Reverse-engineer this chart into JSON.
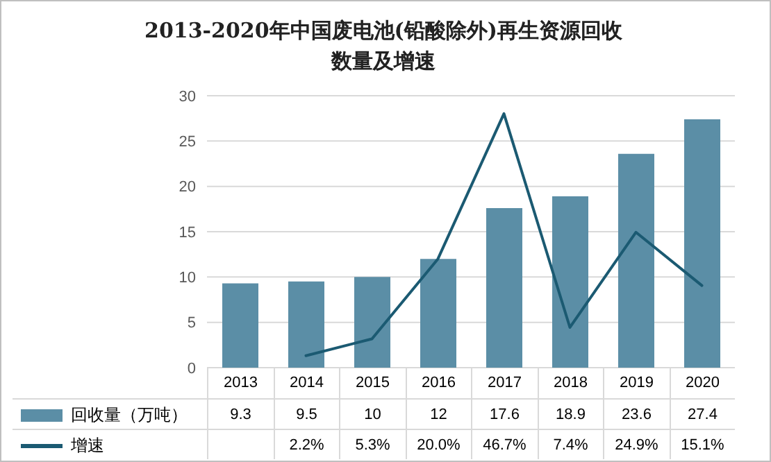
{
  "chart_data": {
    "type": "bar",
    "title": "2013-2020年中国废电池(铅酸除外)再生资源回收数量及增速",
    "categories": [
      "2013",
      "2014",
      "2015",
      "2016",
      "2017",
      "2018",
      "2019",
      "2020"
    ],
    "series": [
      {
        "name": "回收量（万吨）",
        "color": "#5b8ea6",
        "values": [
          9.3,
          9.5,
          10,
          12,
          17.6,
          18.9,
          23.6,
          27.4
        ],
        "value_labels": [
          "9.3",
          "9.5",
          "10",
          "12",
          "17.6",
          "18.9",
          "23.6",
          "27.4"
        ]
      },
      {
        "name": "增速",
        "type": "line",
        "axis": "y2",
        "color": "#1b5a72",
        "values": [
          null,
          2.2,
          5.3,
          20.0,
          46.7,
          7.4,
          24.9,
          15.1
        ],
        "value_labels": [
          null,
          "2.2%",
          "5.3%",
          "20.0%",
          "46.7%",
          "7.4%",
          "24.9%",
          "15.1%"
        ]
      }
    ],
    "ylim": [
      0,
      30
    ],
    "yticks": [
      0,
      5,
      10,
      15,
      20,
      25,
      30
    ],
    "y2lim": [
      0,
      50
    ],
    "grid": "y",
    "legend": "bottom",
    "marker": "none",
    "tick_labels": "y"
  }
}
